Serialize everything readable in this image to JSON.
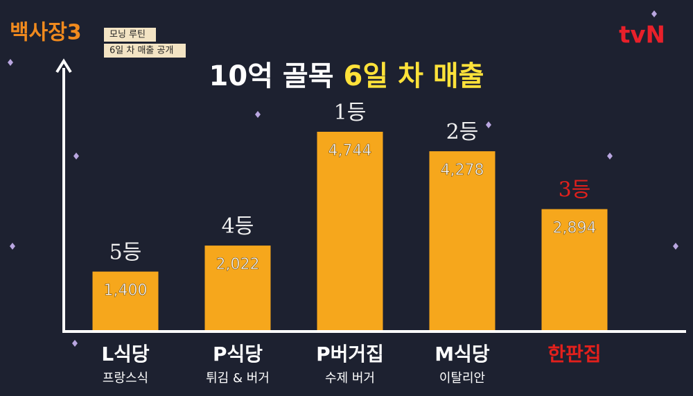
{
  "chart_data": {
    "type": "bar",
    "brand": "백사장3",
    "badges": [
      "모닝 루틴",
      "6일 차 매출 공개"
    ],
    "channel": "tvN",
    "title": "10억 골목",
    "title_highlight": "6일 차 매출",
    "categories": [
      "L식당",
      "P식당",
      "P버거집",
      "M식당",
      "한판집"
    ],
    "subcategories": [
      "프랑스식",
      "튀김 & 버거",
      "수제 버거",
      "이탈리안",
      null
    ],
    "values": [
      1400,
      2022,
      4744,
      4278,
      2894
    ],
    "value_labels": [
      "1,400",
      "2,022",
      "4,744",
      "4,278",
      "2,894"
    ],
    "ranks": [
      "5등",
      "4등",
      "1등",
      "2등",
      "3등"
    ],
    "color": "#f6a71c",
    "label_colors": [
      "#ffffff",
      "#ffffff",
      "#ffffff",
      "#ffffff",
      "#e3201c"
    ]
  }
}
